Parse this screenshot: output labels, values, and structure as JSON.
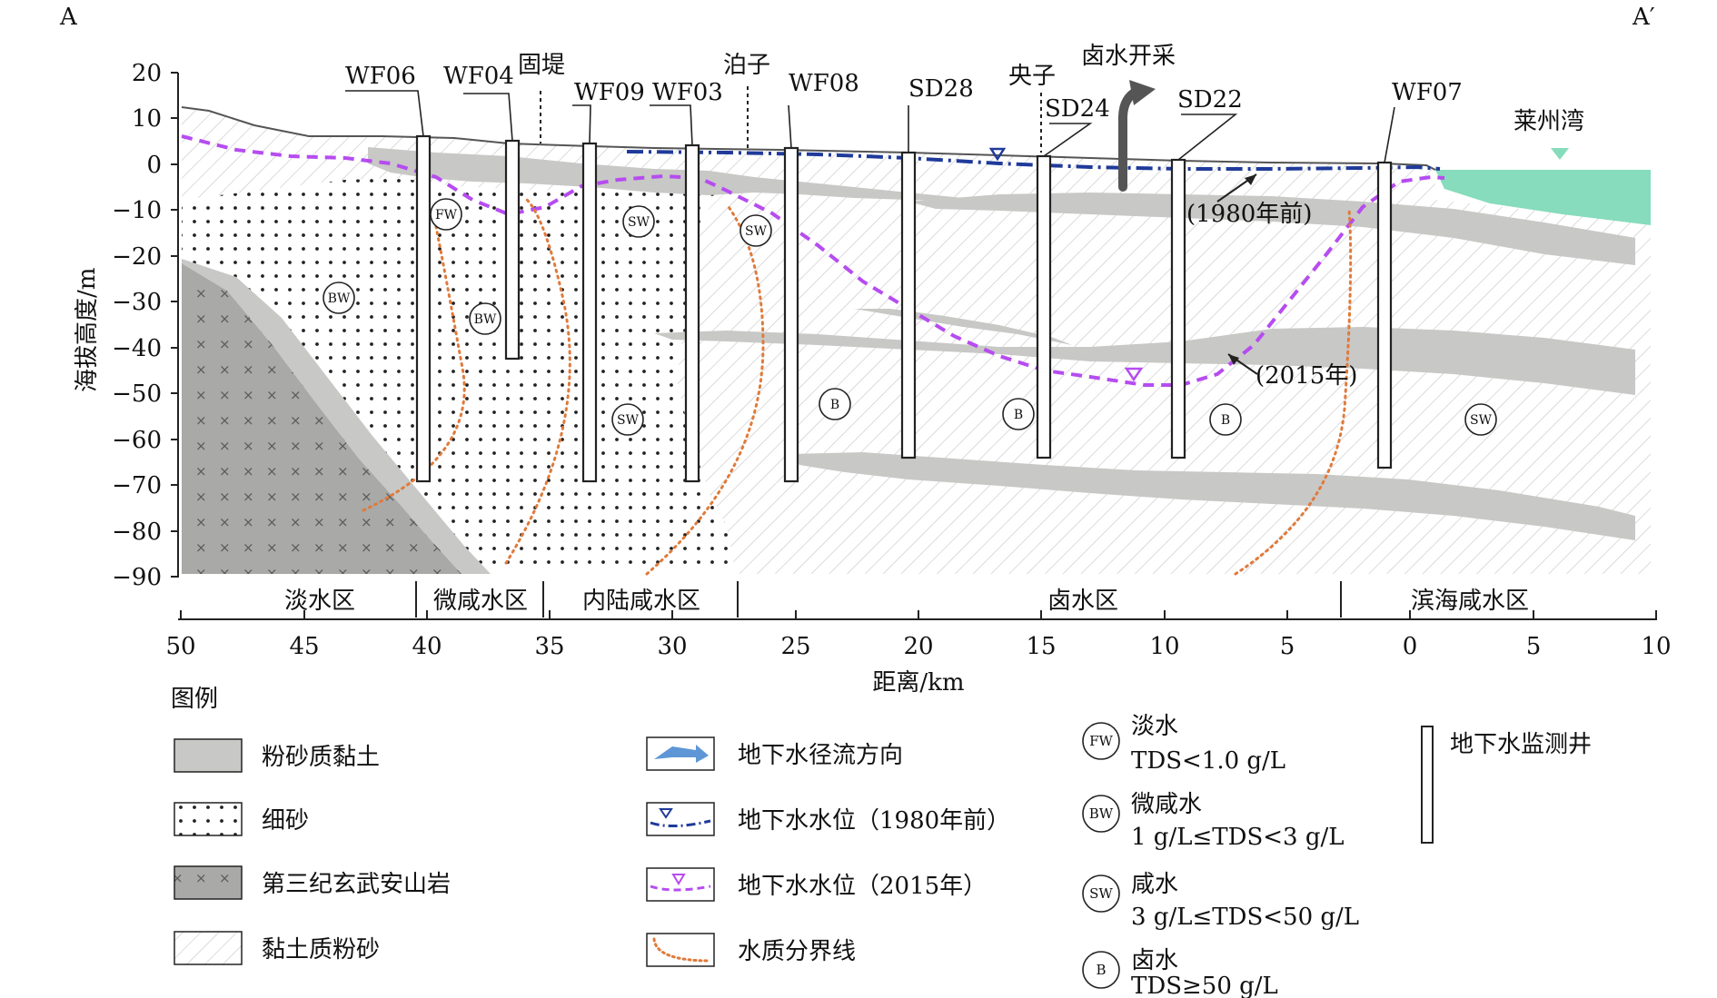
{
  "corner_left": "A",
  "corner_right": "A′",
  "axes": {
    "ylabel": "海拔高度/m",
    "xlabel": "距离/km",
    "y_ticks": [
      "20",
      "10",
      "0",
      "−10",
      "−20",
      "−30",
      "−40",
      "−50",
      "−60",
      "−70",
      "−80",
      "−90"
    ],
    "x_ticks": [
      "50",
      "45",
      "40",
      "35",
      "30",
      "25",
      "20",
      "15",
      "10",
      "5",
      "0",
      "5",
      "10"
    ]
  },
  "wells": [
    {
      "label": "WF06"
    },
    {
      "label": "WF04"
    },
    {
      "label": "WF09"
    },
    {
      "label": "WF03"
    },
    {
      "label": "WF08"
    },
    {
      "label": "SD28"
    },
    {
      "label": "SD24"
    },
    {
      "label": "SD22"
    },
    {
      "label": "WF07"
    }
  ],
  "places": {
    "guti": "固堤",
    "pozi": "泊子",
    "yangzi": "央子",
    "brine_mining": "卤水开采",
    "laizhou_bay": "莱州湾"
  },
  "water_level_labels": {
    "pre1980": "(1980年前)",
    "y2015": "(2015年)"
  },
  "water_type_markers": {
    "fw": "FW",
    "bw": "BW",
    "sw": "SW",
    "b": "B"
  },
  "zones": [
    "淡水区",
    "微咸水区",
    "内陆咸水区",
    "卤水区",
    "滨海咸水区"
  ],
  "legend": {
    "title": "图例",
    "col1": [
      "粉砂质黏土",
      "细砂",
      "第三纪玄武安山岩",
      "黏土质粉砂"
    ],
    "col2": [
      "地下水径流方向",
      "地下水水位（1980年前）",
      "地下水水位（2015年）",
      "水质分界线"
    ],
    "col3": [
      {
        "code": "FW",
        "name": "淡水",
        "desc": "TDS<1.0 g/L"
      },
      {
        "code": "BW",
        "name": "微咸水",
        "desc": "1 g/L≤TDS<3 g/L"
      },
      {
        "code": "SW",
        "name": "咸水",
        "desc": "3 g/L≤TDS<50 g/L"
      },
      {
        "code": "B",
        "name": "卤水",
        "desc": "TDS≥50 g/L"
      }
    ],
    "col4": "地下水监测井"
  },
  "colors": {
    "silty_clay": "#c8c8c6",
    "basalt": "#a9a9a7",
    "sea": "#86dcbc",
    "level_1980": "#1f3a9a",
    "level_2015": "#b64cf0",
    "boundary": "#e07a3a"
  }
}
